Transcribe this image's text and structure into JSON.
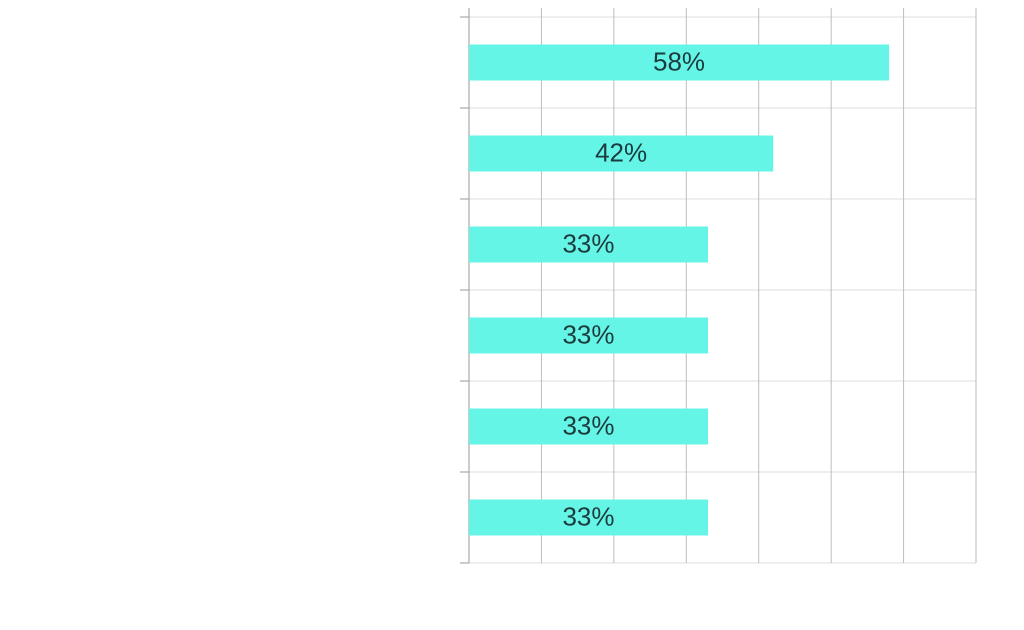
{
  "chart_data": {
    "type": "hbar",
    "categories": [
      null,
      null,
      null,
      null,
      null,
      null
    ],
    "values": [
      58,
      42,
      33,
      33,
      33,
      33
    ],
    "value_labels": [
      "58%",
      "42%",
      "33%",
      "33%",
      "33%",
      "33%"
    ],
    "color": "#64f5e6",
    "xlim": [
      0,
      70
    ],
    "xticks": [
      0,
      10,
      20,
      30,
      40,
      50,
      60,
      70
    ],
    "grid": true
  }
}
